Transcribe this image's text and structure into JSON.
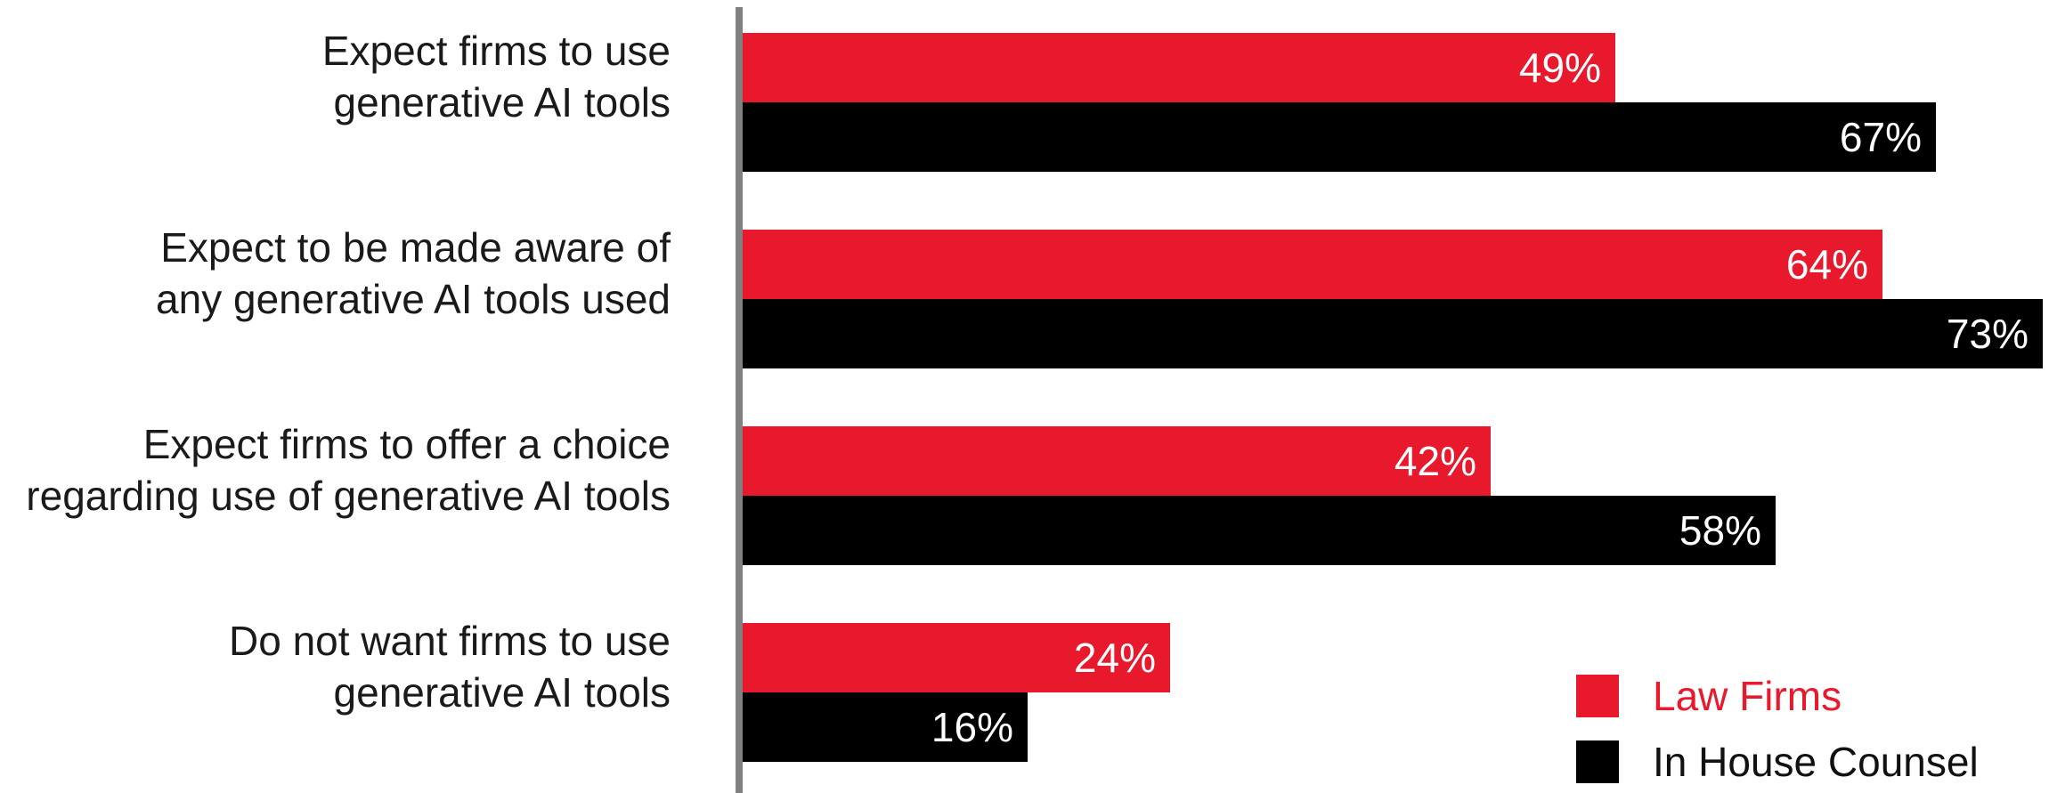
{
  "chart_data": {
    "type": "bar",
    "orientation": "horizontal",
    "categories": [
      [
        "Expect firms to use",
        "generative AI tools"
      ],
      [
        "Expect to be made aware of",
        "any generative AI tools used"
      ],
      [
        "Expect firms to offer a choice",
        "regarding use of generative AI tools"
      ],
      [
        "Do not want firms to use",
        "generative AI tools"
      ]
    ],
    "series": [
      {
        "name": "Law Firms",
        "color": "#e8192c",
        "values": [
          49,
          64,
          42,
          24
        ],
        "labels": [
          "49%",
          "64%",
          "42%",
          "24%"
        ]
      },
      {
        "name": "In House Counsel",
        "color": "#000000",
        "values": [
          67,
          73,
          58,
          16
        ],
        "labels": [
          "67%",
          "73%",
          "58%",
          "16%"
        ]
      }
    ],
    "xlim": [
      0,
      73
    ],
    "grid": false,
    "legend_position": "bottom-right",
    "axis_color": "#808080"
  }
}
